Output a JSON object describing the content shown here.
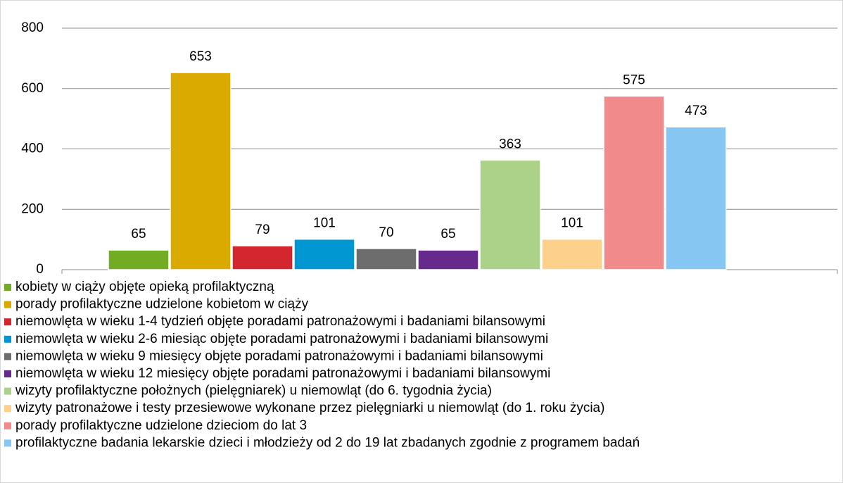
{
  "chart_data": {
    "type": "bar",
    "categories": [
      null
    ],
    "series": [
      {
        "name": "kobiety w ciąży objęte opieką profilaktyczną",
        "color": "#72ab24",
        "values": [
          65
        ]
      },
      {
        "name": "porady profilaktyczne udzielone kobietom w ciąży",
        "color": "#dbaa00",
        "values": [
          653
        ]
      },
      {
        "name": "niemowlęta w wieku 1-4 tydzień objęte poradami patronażowymi i badaniami bilansowymi",
        "color": "#d4262f",
        "values": [
          79
        ]
      },
      {
        "name": "niemowlęta w wieku 2-6 miesiąc objęte poradami patronażowymi i badaniami bilansowymi",
        "color": "#0097d3",
        "values": [
          101
        ]
      },
      {
        "name": "niemowlęta w wieku 9 miesięcy objęte poradami patronażowymi i badaniami bilansowymi",
        "color": "#6d6d6d",
        "values": [
          70
        ]
      },
      {
        "name": "niemowlęta w wieku 12 miesięcy objęte poradami patronażowymi i badaniami bilansowymi",
        "color": "#652a8c",
        "values": [
          65
        ]
      },
      {
        "name": "wizyty profilaktyczne położnych (pielęgniarek) u niemowląt (do 6. tygodnia życia)",
        "color": "#acd28a",
        "values": [
          363
        ]
      },
      {
        "name": "wizyty patronażowe i testy przesiewowe wykonane przez pielęgniarki u niemowląt (do 1. roku życia)",
        "color": "#fdd18c",
        "values": [
          101
        ]
      },
      {
        "name": "porady profilaktyczne udzielone dzieciom do lat 3",
        "color": "#f08a8b",
        "values": [
          575
        ]
      },
      {
        "name": "profilaktyczne badania lekarskie dzieci i młodzieży od 2 do 19 lat zbadanych zgodnie z programem badań",
        "color": "#86c6f2",
        "values": [
          473
        ]
      }
    ],
    "ylim": [
      0,
      800
    ],
    "yticks": [
      0,
      200,
      400,
      600,
      800
    ],
    "grid": true,
    "legend": "bottom"
  }
}
